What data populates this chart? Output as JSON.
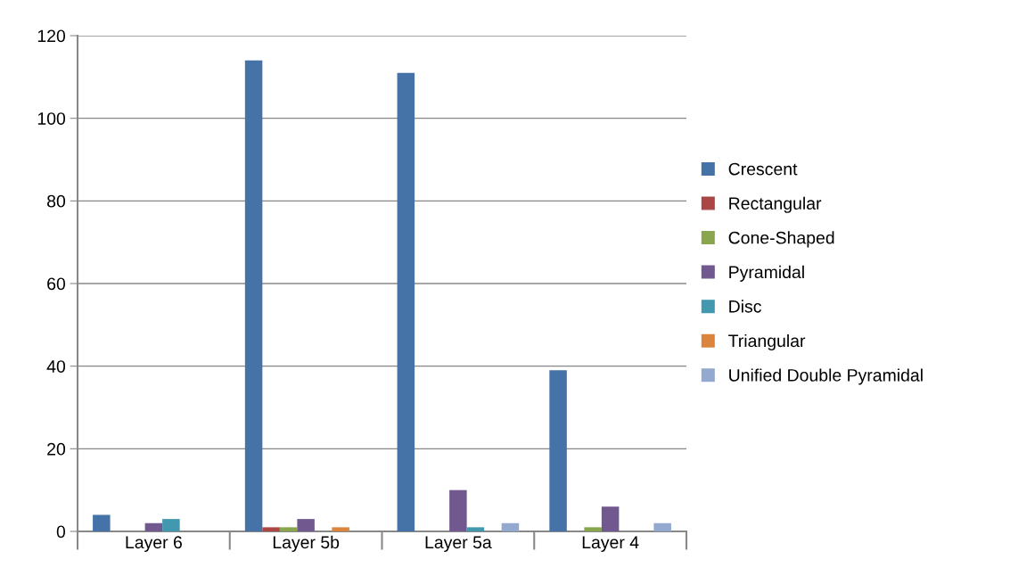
{
  "chart_data": {
    "type": "bar",
    "categories": [
      "Layer 6",
      "Layer 5b",
      "Layer 5a",
      "Layer 4"
    ],
    "series": [
      {
        "name": "Crescent",
        "color": "#4572a7",
        "values": [
          4,
          114,
          111,
          39
        ]
      },
      {
        "name": "Rectangular",
        "color": "#aa4643",
        "values": [
          0,
          1,
          0,
          0
        ]
      },
      {
        "name": "Cone-Shaped",
        "color": "#89a54e",
        "values": [
          0,
          1,
          0,
          1
        ]
      },
      {
        "name": "Pyramidal",
        "color": "#71588f",
        "values": [
          2,
          3,
          10,
          6
        ]
      },
      {
        "name": "Disc",
        "color": "#4198af",
        "values": [
          3,
          0,
          1,
          0
        ]
      },
      {
        "name": "Triangular",
        "color": "#db843d",
        "values": [
          0,
          1,
          0,
          0
        ]
      },
      {
        "name": "Unified Double Pyramidal",
        "color": "#93a9cf",
        "values": [
          0,
          0,
          2,
          2
        ]
      }
    ],
    "ylim": [
      0,
      120
    ],
    "yticks": [
      0,
      20,
      40,
      60,
      80,
      100,
      120
    ],
    "grid": "y",
    "legend": "right"
  }
}
